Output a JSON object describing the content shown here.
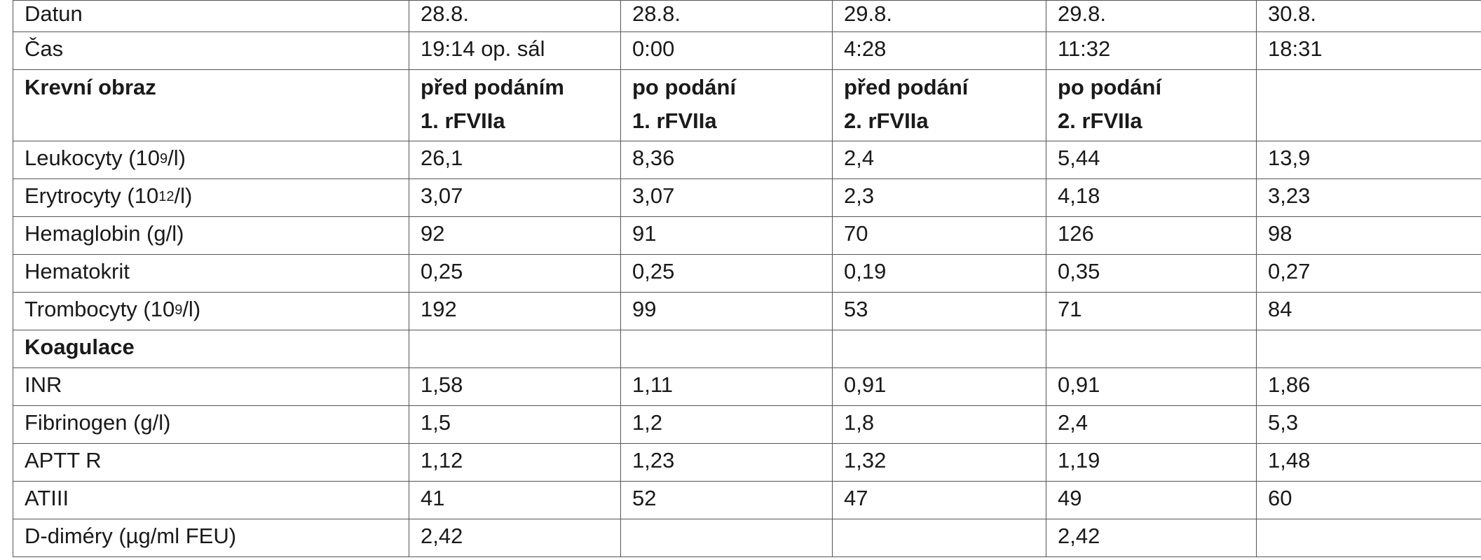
{
  "table": {
    "columns": [
      {
        "datum": "28.8.",
        "cas": "19:14 op. sál",
        "stav1": "před podáním",
        "stav2": "1. rFVIIa"
      },
      {
        "datum": "28.8.",
        "cas": "0:00",
        "stav1": "po podání",
        "stav2": "1. rFVIIa"
      },
      {
        "datum": "29.8.",
        "cas": "4:28",
        "stav1": "před podání",
        "stav2": "2. rFVIIa"
      },
      {
        "datum": "29.8.",
        "cas": "11:32",
        "stav1": "po podání",
        "stav2": "2. rFVIIa"
      },
      {
        "datum": "30.8.",
        "cas": "18:31",
        "stav1": "",
        "stav2": ""
      }
    ],
    "labels": {
      "datum": "Datun",
      "cas": "Čas",
      "krevni_obraz": "Krevní obraz",
      "koagulace": "Koagulace"
    },
    "blood_rows": [
      {
        "label": "Leukocyty (10",
        "sup": "9",
        "unit_tail": "/l)",
        "values": [
          "26,1",
          "8,36",
          "2,4",
          "5,44",
          "13,9"
        ]
      },
      {
        "label": "Erytrocyty (10",
        "sup": "12",
        "unit_tail": "/l)",
        "values": [
          "3,07",
          "3,07",
          "2,3",
          "4,18",
          "3,23"
        ]
      },
      {
        "label": "Hemaglobin (g/l)",
        "sup": "",
        "unit_tail": "",
        "values": [
          "92",
          "91",
          "70",
          "126",
          "98"
        ]
      },
      {
        "label": "Hematokrit",
        "sup": "",
        "unit_tail": "",
        "values": [
          "0,25",
          "0,25",
          "0,19",
          "0,35",
          "0,27"
        ]
      },
      {
        "label": "Trombocyty (10",
        "sup": "9",
        "unit_tail": "/l)",
        "values": [
          "192",
          "99",
          "53",
          "71",
          "84"
        ]
      }
    ],
    "coag_rows": [
      {
        "label": "INR",
        "values": [
          "1,58",
          "1,11",
          "0,91",
          "0,91",
          "1,86"
        ]
      },
      {
        "label": "Fibrinogen (g/l)",
        "values": [
          "1,5",
          "1,2",
          "1,8",
          "2,4",
          "5,3"
        ]
      },
      {
        "label": "APTT R",
        "values": [
          "1,12",
          "1,23",
          "1,32",
          "1,19",
          "1,48"
        ]
      },
      {
        "label": "ATIII",
        "values": [
          "41",
          "52",
          "47",
          "49",
          "60"
        ]
      },
      {
        "label": "D-diméry (µg/ml FEU)",
        "values": [
          "2,42",
          "",
          "",
          "2,42",
          ""
        ]
      }
    ]
  }
}
